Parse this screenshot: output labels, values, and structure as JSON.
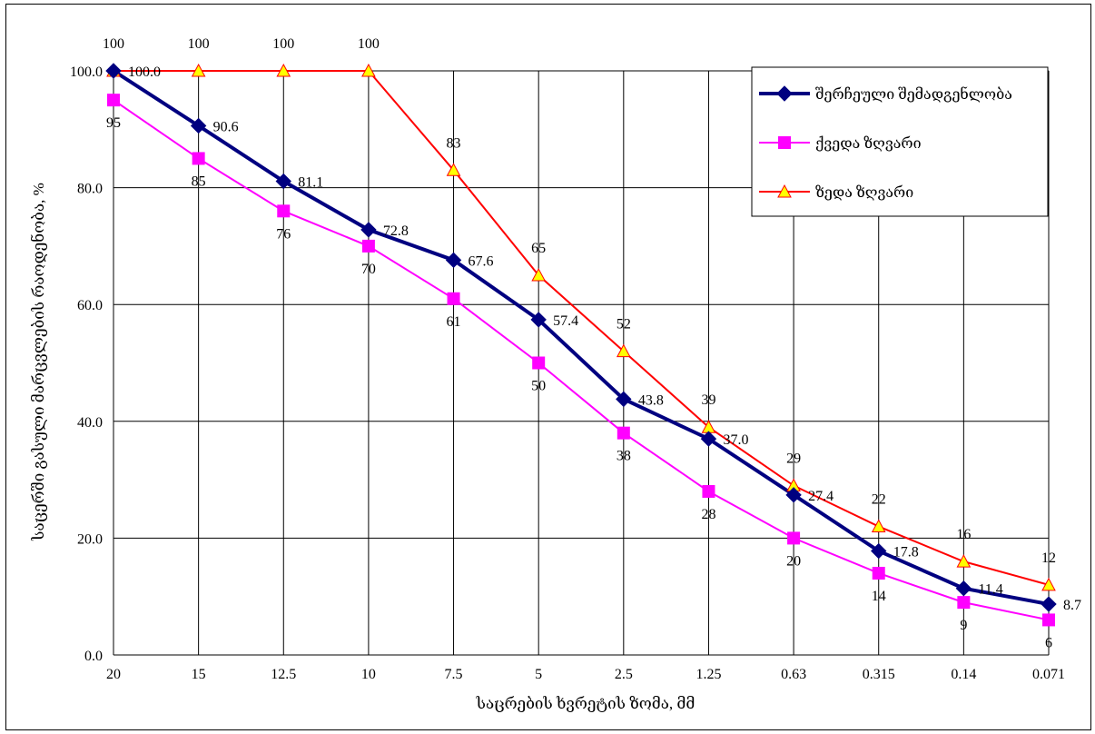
{
  "chart_data": {
    "type": "line",
    "xlabel": "საცრების ხვრეტის ზომა, მმ",
    "ylabel": "საცერში გასული მარცვლების რაოდენობა, %",
    "categories": [
      "20",
      "15",
      "12.5",
      "10",
      "7.5",
      "5",
      "2.5",
      "1.25",
      "0.63",
      "0.315",
      "0.14",
      "0.071"
    ],
    "ylim": [
      0,
      100
    ],
    "yticks": [
      "0.0",
      "20.0",
      "40.0",
      "60.0",
      "80.0",
      "100.0"
    ],
    "grid": true,
    "legend_position": "top-right",
    "series": [
      {
        "name": "შერჩეული შემადგენლობა",
        "values": [
          100.0,
          90.6,
          81.1,
          72.8,
          67.6,
          57.4,
          43.8,
          37.0,
          27.4,
          17.8,
          11.4,
          8.7
        ],
        "labels": [
          "100.0",
          "90.6",
          "81.1",
          "72.8",
          "67.6",
          "57.4",
          "43.8",
          "37.0",
          "27.4",
          "17.8",
          "11.4",
          "8.7"
        ],
        "color": "#000080",
        "marker": "diamond"
      },
      {
        "name": "ქვედა ზღვარი",
        "values": [
          95,
          85,
          76,
          70,
          61,
          50,
          38,
          28,
          20,
          14,
          9,
          6
        ],
        "labels": [
          "95",
          "85",
          "76",
          "70",
          "61",
          "50",
          "38",
          "28",
          "20",
          "14",
          "9",
          "6"
        ],
        "color": "#ff00ff",
        "marker": "square"
      },
      {
        "name": "ზედა ზღვარი",
        "values": [
          100,
          100,
          100,
          100,
          83,
          65,
          52,
          39,
          29,
          22,
          16,
          12
        ],
        "labels": [
          "100",
          "100",
          "100",
          "100",
          "83",
          "65",
          "52",
          "39",
          "29",
          "22",
          "16",
          "12"
        ],
        "color": "#ff0000",
        "marker": "triangle",
        "marker_fill": "#ffff00"
      }
    ]
  }
}
